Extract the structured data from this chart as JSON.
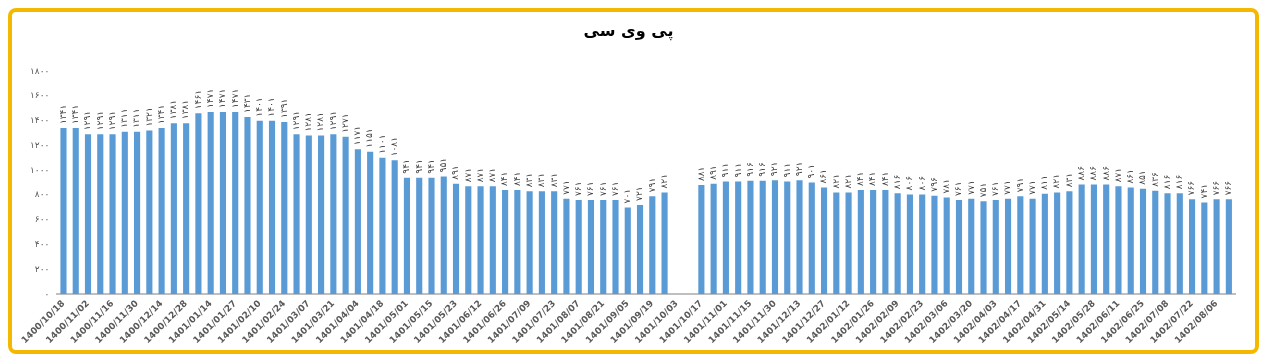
{
  "chart_data": {
    "type": "bar",
    "title": "پی وی سی",
    "categories": [
      "1400/10/18",
      null,
      "1400/11/02",
      null,
      "1400/11/16",
      null,
      "1400/11/30",
      null,
      "1400/12/14",
      null,
      "1400/12/28",
      null,
      "1401/01/14",
      null,
      "1401/01/27",
      null,
      "1401/02/10",
      null,
      "1401/02/24",
      null,
      "1401/03/07",
      null,
      "1401/03/21",
      null,
      "1401/04/04",
      null,
      "1401/04/18",
      null,
      "1401/05/01",
      null,
      "1401/05/15",
      null,
      "1401/05/23",
      null,
      "1401/06/12",
      null,
      "1401/06/26",
      null,
      "1401/07/09",
      null,
      "1401/07/23",
      null,
      "1401/08/07",
      null,
      "1401/08/21",
      null,
      "1401/09/05",
      null,
      "1401/09/19",
      null,
      "1401/10/03",
      null,
      "1401/10/17",
      null,
      "1401/11/01",
      null,
      "1401/11/15",
      null,
      "1401/11/30",
      null,
      "1401/12/13",
      null,
      "1401/12/27",
      null,
      "1402/01/12",
      null,
      "1402/01/26",
      null,
      "1402/02/09",
      null,
      "1402/02/23",
      null,
      "1402/03/06",
      null,
      "1402/03/20",
      null,
      "1402/04/03",
      null,
      "1402/04/17",
      null,
      "1402/04/31",
      null,
      "1402/05/14",
      null,
      "1402/05/28",
      null,
      "1402/06/11",
      null,
      "1402/06/25",
      null,
      "1402/07/08",
      null,
      "1402/07/22",
      null,
      "1402/08/06",
      null
    ],
    "values": [
      1341,
      1341,
      1291,
      1291,
      1291,
      1311,
      1311,
      1321,
      1341,
      1381,
      1381,
      1461,
      1471,
      1471,
      1471,
      1431,
      1401,
      1401,
      1391,
      1291,
      1281,
      1281,
      1291,
      1271,
      1171,
      1151,
      1101,
      1081,
      941,
      941,
      941,
      951,
      891,
      871,
      871,
      871,
      841,
      841,
      831,
      831,
      831,
      771,
      761,
      761,
      761,
      761,
      701,
      721,
      791,
      821,
      null,
      null,
      881,
      891,
      911,
      911,
      916,
      916,
      921,
      911,
      921,
      901,
      861,
      821,
      821,
      841,
      841,
      841,
      816,
      806,
      806,
      796,
      781,
      761,
      771,
      751,
      761,
      771,
      791,
      771,
      811,
      821,
      831,
      886,
      886,
      886,
      871,
      861,
      851,
      836,
      816,
      816,
      766,
      741,
      766,
      766
    ],
    "value_labels": [
      "۱۳۴۱",
      "۱۳۴۱",
      "۱۲۹۱",
      "۱۲۹۱",
      "۱۲۹۱",
      "۱۳۱۱",
      "۱۳۱۱",
      "۱۳۲۱",
      "۱۳۴۱",
      "۱۳۸۱",
      "۱۳۸۱",
      "۱۴۶۱",
      "۱۴۷۱",
      "۱۴۷۱",
      "۱۴۷۱",
      "۱۴۳۱",
      "۱۴۰۱",
      "۱۴۰۱",
      "۱۳۹۱",
      "۱۲۹۱",
      "۱۲۸۱",
      "۱۲۸۱",
      "۱۲۹۱",
      "۱۲۷۱",
      "۱۱۷۱",
      "۱۱۵۱",
      "۱۱۰۱",
      "۱۰۸۱",
      "۹۴۱",
      "۹۴۱",
      "۹۴۱",
      "۹۵۱",
      "۸۹۱",
      "۸۷۱",
      "۸۷۱",
      "۸۷۱",
      "۸۴۱",
      "۸۴۱",
      "۸۳۱",
      "۸۳۱",
      "۸۳۱",
      "۷۷۱",
      "۷۶۱",
      "۷۶۱",
      "۷۶۱",
      "۷۶۱",
      "۷۰۱",
      "۷۲۱",
      "۷۹۱",
      "۸۲۱",
      null,
      null,
      "۸۸۱",
      "۸۹۱",
      "۹۱۱",
      "۹۱۱",
      "۹۱۶",
      "۹۱۶",
      "۹۲۱",
      "۹۱۱",
      "۹۲۱",
      "۹۰۱",
      "۸۶۱",
      "۸۲۱",
      "۸۲۱",
      "۸۴۱",
      "۸۴۱",
      "۸۴۱",
      "۸۱۶",
      "۸۰۶",
      "۸۰۶",
      "۷۹۶",
      "۷۸۱",
      "۷۶۱",
      "۷۷۱",
      "۷۵۱",
      "۷۶۱",
      "۷۷۱",
      "۷۹۱",
      "۷۷۱",
      "۸۱۱",
      "۸۲۱",
      "۸۳۱",
      "۸۸۶",
      "۸۸۶",
      "۸۸۶",
      "۸۷۱",
      "۸۶۱",
      "۸۵۱",
      "۸۳۶",
      "۸۱۶",
      "۸۱۶",
      "۷۶۶",
      "۷۴۱",
      "۷۶۶",
      "۷۶۶"
    ],
    "color": "#5b9bd5",
    "ylim": [
      0,
      1800
    ],
    "yticks": [
      {
        "value": 0,
        "label": "۰"
      },
      {
        "value": 200,
        "label": "۲۰۰"
      },
      {
        "value": 400,
        "label": "۴۰۰"
      },
      {
        "value": 600,
        "label": "۶۰۰"
      },
      {
        "value": 800,
        "label": "۸۰۰"
      },
      {
        "value": 1000,
        "label": "۱۰۰۰"
      },
      {
        "value": 1200,
        "label": "۱۲۰۰"
      },
      {
        "value": 1400,
        "label": "۱۴۰۰"
      },
      {
        "value": 1600,
        "label": "۱۶۰۰"
      },
      {
        "value": 1800,
        "label": "۱۸۰۰"
      }
    ],
    "grid": false,
    "legend": false
  }
}
